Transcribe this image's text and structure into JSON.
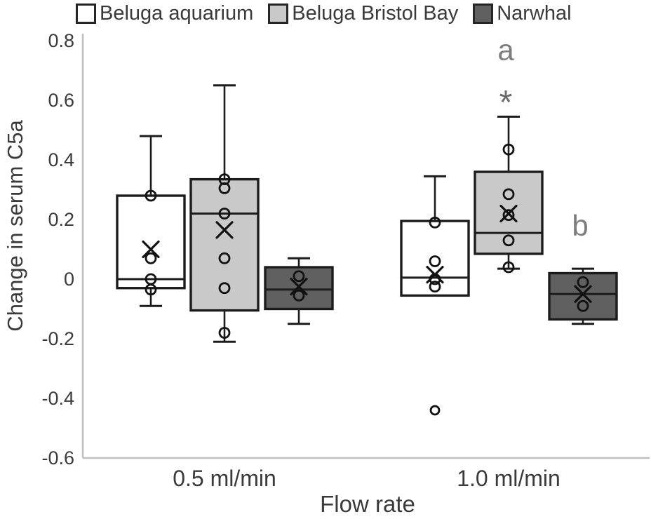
{
  "chart_data": {
    "type": "boxplot",
    "title": "",
    "xlabel": "Flow rate",
    "ylabel": "Change in serum C5a",
    "ylim": [
      -0.6,
      0.8
    ],
    "yticks": [
      {
        "label": "0.8",
        "value": 0.8
      },
      {
        "label": "0.6",
        "value": 0.6
      },
      {
        "label": "0.4",
        "value": 0.4
      },
      {
        "label": "0.2",
        "value": 0.2
      },
      {
        "label": "0",
        "value": 0
      },
      {
        "label": "-0.2",
        "value": -0.2
      },
      {
        "label": "-0.4",
        "value": -0.4
      },
      {
        "label": "-0.6",
        "value": -0.6
      }
    ],
    "categories": [
      "0.5 ml/min",
      "1.0 ml/min"
    ],
    "legend_position": "top",
    "grid": false,
    "colors": {
      "beluga_aquarium_fill": "#ffffff",
      "beluga_bristol_bay_fill": "#c9c9c9",
      "narwhal_fill": "#606060",
      "box_stroke": "#1c1c1c",
      "marker_stroke": "#111111",
      "axis_line": "#bfbfbf",
      "label_text": "#3a3a3a",
      "annotation_text": "#7d7d7d"
    },
    "series": [
      {
        "name": "Beluga aquarium",
        "fill": "#ffffff",
        "boxes": [
          {
            "category": "0.5 ml/min",
            "whisker_low": -0.09,
            "q1": -0.03,
            "median": 0.0,
            "q3": 0.28,
            "whisker_high": 0.48,
            "mean": 0.1,
            "points": [
              0.28,
              0.07,
              0.0,
              -0.035
            ],
            "outliers": [],
            "annotations": []
          },
          {
            "category": "1.0 ml/min",
            "whisker_low": null,
            "q1": -0.055,
            "median": 0.005,
            "q3": 0.195,
            "whisker_high": 0.345,
            "mean": 0.015,
            "points": [
              0.19,
              0.06,
              0.0,
              -0.025
            ],
            "outliers": [
              -0.44
            ],
            "annotations": []
          }
        ]
      },
      {
        "name": "Beluga Bristol Bay",
        "fill": "#c9c9c9",
        "boxes": [
          {
            "category": "0.5 ml/min",
            "whisker_low": -0.21,
            "q1": -0.105,
            "median": 0.22,
            "q3": 0.335,
            "whisker_high": 0.65,
            "mean": 0.165,
            "points": [
              0.335,
              0.305,
              0.22,
              0.07,
              -0.03,
              -0.18
            ],
            "outliers": [],
            "annotations": []
          },
          {
            "category": "1.0 ml/min",
            "whisker_low": 0.035,
            "q1": 0.085,
            "median": 0.155,
            "q3": 0.36,
            "whisker_high": 0.545,
            "mean": 0.22,
            "points": [
              0.435,
              0.285,
              0.215,
              0.13,
              0.04
            ],
            "outliers": [],
            "annotations": [
              {
                "label": "a",
                "value": 0.77
              },
              {
                "label": "*",
                "value": 0.63
              }
            ]
          }
        ]
      },
      {
        "name": "Narwhal",
        "fill": "#606060",
        "boxes": [
          {
            "category": "0.5 ml/min",
            "whisker_low": -0.15,
            "q1": -0.1,
            "median": -0.035,
            "q3": 0.04,
            "whisker_high": 0.07,
            "mean": -0.025,
            "points": [
              0.01,
              -0.055
            ],
            "outliers": [],
            "annotations": []
          },
          {
            "category": "1.0 ml/min",
            "whisker_low": -0.15,
            "q1": -0.135,
            "median": -0.05,
            "q3": 0.02,
            "whisker_high": 0.035,
            "mean": -0.05,
            "points": [
              -0.01,
              -0.09
            ],
            "outliers": [],
            "annotations": [
              {
                "label": "b",
                "value": 0.18
              }
            ]
          }
        ]
      }
    ]
  }
}
